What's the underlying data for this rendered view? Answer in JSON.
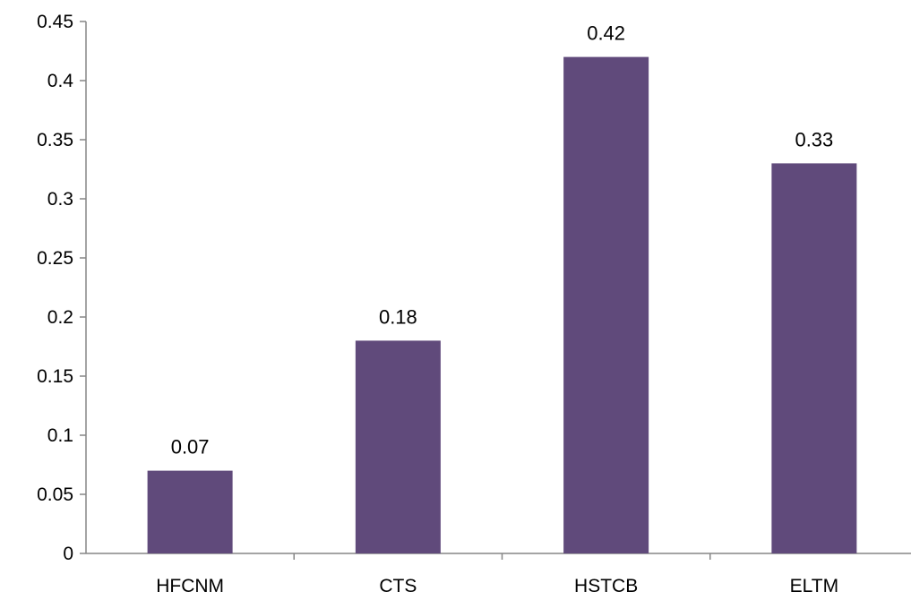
{
  "chart_data": {
    "type": "bar",
    "categories": [
      "HFCNM",
      "CTS",
      "HSTCB",
      "ELTM"
    ],
    "values": [
      0.07,
      0.18,
      0.42,
      0.33
    ],
    "data_labels": [
      "0.07",
      "0.18",
      "0.42",
      "0.33"
    ],
    "title": "",
    "xlabel": "",
    "ylabel": "",
    "ylim": [
      0,
      0.45
    ],
    "yticks": [
      0,
      0.05,
      0.1,
      0.15,
      0.2,
      0.25,
      0.3,
      0.35,
      0.4,
      0.45
    ],
    "ytick_labels": [
      "0",
      "0.05",
      "0.1",
      "0.15",
      "0.2",
      "0.25",
      "0.3",
      "0.35",
      "0.4",
      "0.45"
    ],
    "grid": false,
    "legend": "none",
    "bar_color": "#604A7B"
  }
}
